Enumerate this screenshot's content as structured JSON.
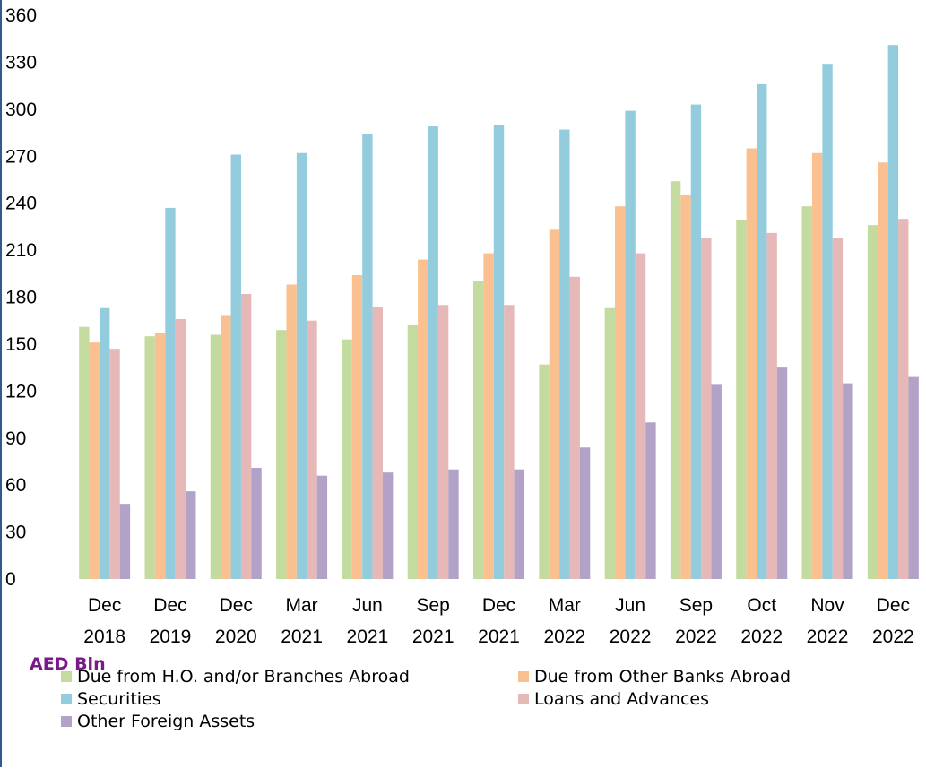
{
  "chart_data": {
    "type": "bar",
    "ylabel": "AED Bln",
    "ylim": [
      0,
      360
    ],
    "yticks": [
      0,
      30,
      60,
      90,
      120,
      150,
      180,
      210,
      240,
      270,
      300,
      330,
      360
    ],
    "grid": false,
    "legend_position": "bottom",
    "categories": [
      [
        "Dec",
        "2018"
      ],
      [
        "Dec",
        "2019"
      ],
      [
        "Dec",
        "2020"
      ],
      [
        "Mar",
        "2021"
      ],
      [
        "Jun",
        "2021"
      ],
      [
        "Sep",
        "2021"
      ],
      [
        "Dec",
        "2021"
      ],
      [
        "Mar",
        "2022"
      ],
      [
        "Jun",
        "2022"
      ],
      [
        "Sep",
        "2022"
      ],
      [
        "Oct",
        "2022"
      ],
      [
        "Nov",
        "2022"
      ],
      [
        "Dec",
        "2022"
      ]
    ],
    "series": [
      {
        "name": "Due from H.O. and/or Branches Abroad",
        "color": "#c4dba0",
        "values": [
          161,
          155,
          156,
          159,
          153,
          162,
          190,
          137,
          173,
          254,
          229,
          238,
          226
        ]
      },
      {
        "name": "Due from Other Banks Abroad",
        "color": "#fac090",
        "values": [
          151,
          157,
          168,
          188,
          194,
          204,
          208,
          223,
          238,
          245,
          275,
          272,
          266
        ]
      },
      {
        "name": "Securities",
        "color": "#93cddd",
        "values": [
          173,
          237,
          271,
          272,
          284,
          289,
          290,
          287,
          299,
          303,
          316,
          329,
          341
        ]
      },
      {
        "name": "Loans and Advances",
        "color": "#e6b9b8",
        "values": [
          147,
          166,
          182,
          165,
          174,
          175,
          175,
          193,
          208,
          218,
          221,
          218,
          230
        ]
      },
      {
        "name": "Other Foreign Assets",
        "color": "#b2a2c7",
        "values": [
          48,
          56,
          71,
          66,
          68,
          70,
          70,
          84,
          100,
          124,
          135,
          125,
          129
        ]
      }
    ]
  }
}
